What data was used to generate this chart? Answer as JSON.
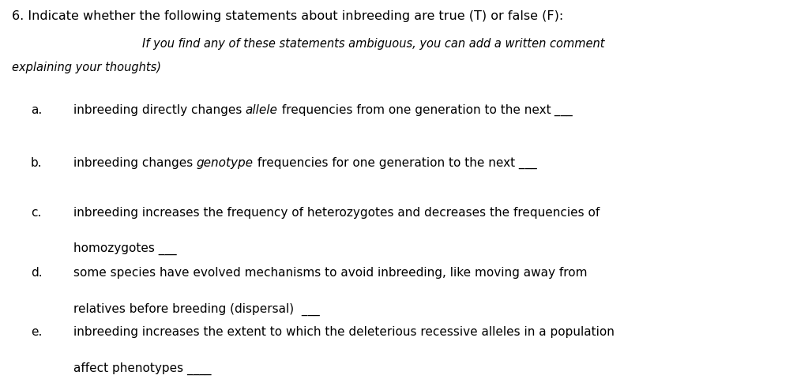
{
  "background_color": "#ffffff",
  "fig_width": 10.28,
  "fig_height": 4.8,
  "dpi": 100,
  "title_line1": "6. Indicate whether the following statements about inbreeding are true (T) or false (F):",
  "title_line2_italic": "If you find any of these statements ambiguous, you can add a written comment",
  "title_line3_italic": "explaining your thoughts)",
  "items": [
    {
      "label": "a.",
      "pre_italic": "inbreeding directly changes ",
      "italic": "allele",
      "post_italic": " frequencies from one generation to the next",
      "underline_after_first": " ___",
      "second_line": null,
      "second_underline": null
    },
    {
      "label": "b.",
      "pre_italic": "inbreeding changes ",
      "italic": "genotype",
      "post_italic": " frequencies for one generation to the next",
      "underline_after_first": " ___",
      "second_line": null,
      "second_underline": null
    },
    {
      "label": "c.",
      "pre_italic": "inbreeding increases the frequency of heterozygotes and decreases the frequencies of",
      "italic": null,
      "post_italic": null,
      "underline_after_first": null,
      "second_line": "homozygotes ___",
      "second_underline": null
    },
    {
      "label": "d.",
      "pre_italic": "some species have evolved mechanisms to avoid inbreeding, like moving away from",
      "italic": null,
      "post_italic": null,
      "underline_after_first": null,
      "second_line": "relatives before breeding (dispersal)  ___",
      "second_underline": null
    },
    {
      "label": "e.",
      "pre_italic": "inbreeding increases the extent to which the deleterious recessive alleles in a population",
      "italic": null,
      "post_italic": null,
      "underline_after_first": null,
      "second_line": "affect phenotypes ____",
      "second_underline": null
    }
  ]
}
